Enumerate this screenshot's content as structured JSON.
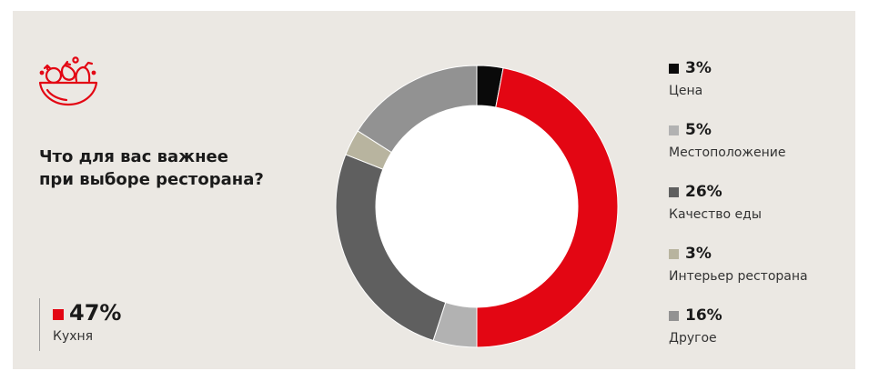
{
  "question": {
    "line1": "Что для вас важнее",
    "line2": "при выборе ресторана?"
  },
  "logo": {
    "icon": "fruit-bowl-icon",
    "color": "#e30613"
  },
  "callout": {
    "value": "47%",
    "label": "Кухня",
    "color": "#e30613"
  },
  "chart_data": {
    "type": "pie",
    "style": "donut",
    "slices": [
      {
        "label": "Цена",
        "value": 3,
        "value_label": "3%",
        "color": "#0a0a0a"
      },
      {
        "label": "Кухня",
        "value": 47,
        "value_label": "47%",
        "color": "#e30613"
      },
      {
        "label": "Местоположение",
        "value": 5,
        "value_label": "5%",
        "color": "#b2b2b2"
      },
      {
        "label": "Качество еды",
        "value": 26,
        "value_label": "26%",
        "color": "#5f5f5f"
      },
      {
        "label": "Интерьер ресторана",
        "value": 3,
        "value_label": "3%",
        "color": "#b8b49f"
      },
      {
        "label": "Другое",
        "value": 16,
        "value_label": "16%",
        "color": "#929292"
      }
    ],
    "legend_order": [
      0,
      2,
      3,
      4,
      5
    ],
    "legend_placement": "right",
    "highlight_slice": 1,
    "highlight_placement": "bottom-left"
  }
}
